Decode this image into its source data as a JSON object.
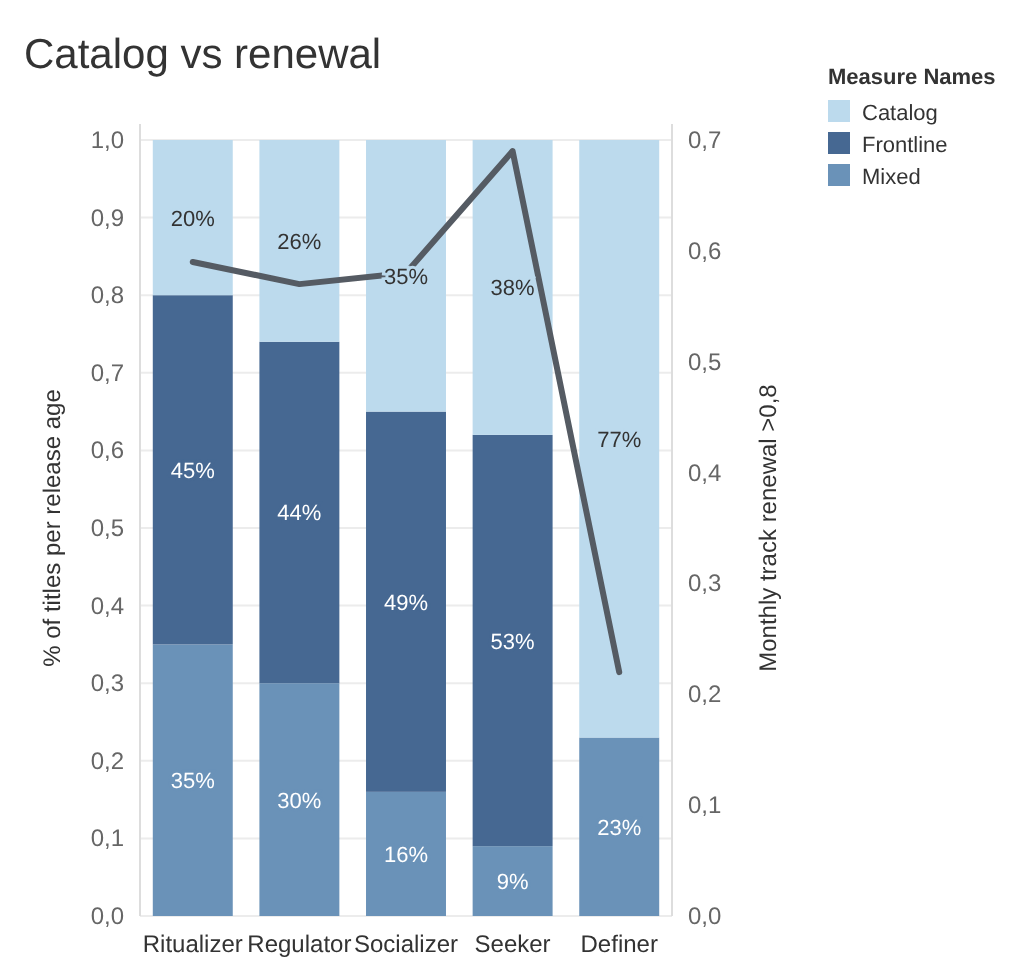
{
  "chart_data": {
    "type": "bar",
    "title": "Catalog vs renewal",
    "ylabel": "% of titles per release age",
    "y2label": "Monthly track renewal >0,8",
    "legend_title": "Measure Names",
    "legend": "right",
    "stacked": true,
    "grid": "y",
    "categories": [
      "Ritualizer",
      "Regulator",
      "Socializer",
      "Seeker",
      "Definer"
    ],
    "ylim": [
      0,
      1
    ],
    "yticks": [
      {
        "value": 0,
        "label": "0,0"
      },
      {
        "value": 0.1,
        "label": "0,1"
      },
      {
        "value": 0.2,
        "label": "0,2"
      },
      {
        "value": 0.3,
        "label": "0,3"
      },
      {
        "value": 0.4,
        "label": "0,4"
      },
      {
        "value": 0.5,
        "label": "0,5"
      },
      {
        "value": 0.6,
        "label": "0,6"
      },
      {
        "value": 0.7,
        "label": "0,7"
      },
      {
        "value": 0.8,
        "label": "0,8"
      },
      {
        "value": 0.9,
        "label": "0,9"
      },
      {
        "value": 1,
        "label": "1,0"
      }
    ],
    "y2lim": [
      0,
      0.7
    ],
    "y2ticks": [
      {
        "value": 0,
        "label": "0,0"
      },
      {
        "value": 0.1,
        "label": "0,1"
      },
      {
        "value": 0.2,
        "label": "0,2"
      },
      {
        "value": 0.3,
        "label": "0,3"
      },
      {
        "value": 0.4,
        "label": "0,4"
      },
      {
        "value": 0.5,
        "label": "0,5"
      },
      {
        "value": 0.6,
        "label": "0,6"
      },
      {
        "value": 0.7,
        "label": "0,7"
      }
    ],
    "series": [
      {
        "name": "Mixed",
        "color": "#6a92b8",
        "values": [
          0.35,
          0.3,
          0.16,
          0.09,
          0.23
        ],
        "value_labels": [
          "35%",
          "30%",
          "16%",
          "9%",
          "23%"
        ]
      },
      {
        "name": "Frontline",
        "color": "#466892",
        "values": [
          0.45,
          0.44,
          0.49,
          0.53,
          0
        ],
        "value_labels": [
          "45%",
          "44%",
          "49%",
          "53%",
          null
        ]
      },
      {
        "name": "Catalog",
        "color": "#bcdaed",
        "values": [
          0.2,
          0.26,
          0.35,
          0.38,
          0.77
        ],
        "value_labels": [
          "20%",
          "26%",
          "35%",
          "38%",
          "77%"
        ]
      },
      {
        "type": "line",
        "axis": "y2",
        "color": "#555b63",
        "values": [
          0.59,
          0.57,
          0.58,
          0.69,
          0.22
        ]
      }
    ]
  }
}
